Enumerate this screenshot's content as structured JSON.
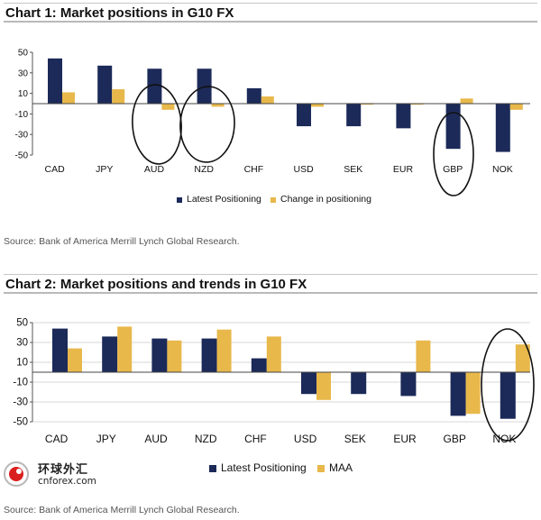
{
  "charts": {
    "chart1": {
      "title": "Chart 1: Market positions in G10 FX",
      "source": "Source: Bank of America Merrill Lynch Global Research."
    },
    "chart2": {
      "title": "Chart 2: Market positions and trends in G10 FX",
      "source": "Source: Bank of America Merrill Lynch Global Research."
    }
  },
  "logo": {
    "cn": "环球外汇",
    "en": "cnforex.com"
  },
  "colors": {
    "navy": "#1c2a59",
    "gold": "#e8b84b",
    "ink": "#111111"
  },
  "chart_data": [
    {
      "type": "bar",
      "categories": [
        "CAD",
        "JPY",
        "AUD",
        "NZD",
        "CHF",
        "USD",
        "SEK",
        "EUR",
        "GBP",
        "NOK"
      ],
      "series": [
        {
          "name": "Latest Positioning",
          "values": [
            44,
            37,
            34,
            34,
            15,
            -22,
            -22,
            -24,
            -44,
            -47
          ]
        },
        {
          "name": "Change in positioning",
          "values": [
            11,
            14,
            -6,
            -3,
            7,
            -3,
            -1,
            -1,
            5,
            -6
          ]
        }
      ],
      "yticks": [
        50,
        30,
        10,
        -10,
        -30,
        -50
      ],
      "ylim": [
        -50,
        50
      ],
      "legend_position": "bottom",
      "annotations": [
        "circle-AUD",
        "circle-NZD",
        "circle-GBP"
      ]
    },
    {
      "type": "bar",
      "categories": [
        "CAD",
        "JPY",
        "AUD",
        "NZD",
        "CHF",
        "USD",
        "SEK",
        "EUR",
        "GBP",
        "NOK"
      ],
      "series": [
        {
          "name": "Latest Positioning",
          "values": [
            44,
            36,
            34,
            34,
            14,
            -22,
            -22,
            -24,
            -44,
            -47
          ]
        },
        {
          "name": "MAA",
          "values": [
            24,
            46,
            32,
            43,
            36,
            -28,
            0,
            32,
            -42,
            28
          ]
        }
      ],
      "yticks": [
        50,
        30,
        10,
        -10,
        -30,
        -50
      ],
      "ylim": [
        -50,
        50
      ],
      "legend_position": "bottom",
      "annotations": [
        "circle-NOK"
      ]
    }
  ]
}
